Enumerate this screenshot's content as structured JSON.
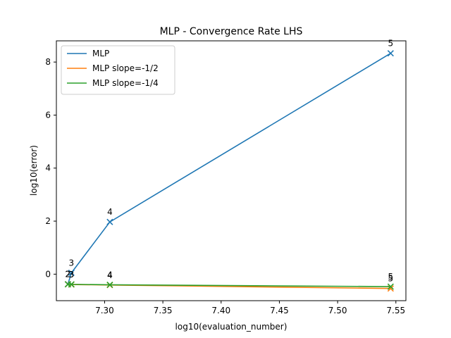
{
  "chart_data": {
    "type": "line",
    "title": "MLP - Convergence Rate LHS",
    "xlabel": "log10(evaluation_number)",
    "ylabel": "log10(error)",
    "xlim": [
      7.2586,
      7.5586
    ],
    "ylim": [
      -1.0,
      8.8
    ],
    "xticks": [
      "7.30",
      "7.35",
      "7.40",
      "7.45",
      "7.50",
      "7.55"
    ],
    "yticks": [
      "0",
      "2",
      "4",
      "6",
      "8"
    ],
    "grid": false,
    "legend_position": "top-left",
    "series": [
      {
        "name": "MLP",
        "color": "#1f77b4",
        "marker": "x",
        "x": [
          7.2685,
          7.2715,
          7.3045,
          7.5455
        ],
        "y": [
          -0.38,
          0.05,
          1.97,
          8.33
        ],
        "labels": [
          "2",
          "3",
          "4",
          "5"
        ]
      },
      {
        "name": "MLP slope=-1/2",
        "color": "#ff7f0e",
        "marker": "x",
        "x": [
          7.2685,
          7.2715,
          7.3045,
          7.5455
        ],
        "y": [
          -0.38,
          -0.39,
          -0.41,
          -0.54
        ],
        "labels": [
          "2",
          "3",
          "4",
          "5"
        ]
      },
      {
        "name": "MLP slope=-1/4",
        "color": "#2ca02c",
        "marker": "x",
        "x": [
          7.2685,
          7.2715,
          7.3045,
          7.5455
        ],
        "y": [
          -0.38,
          -0.385,
          -0.4,
          -0.47
        ],
        "labels": [
          "2",
          "3",
          "4",
          "5"
        ]
      }
    ]
  }
}
